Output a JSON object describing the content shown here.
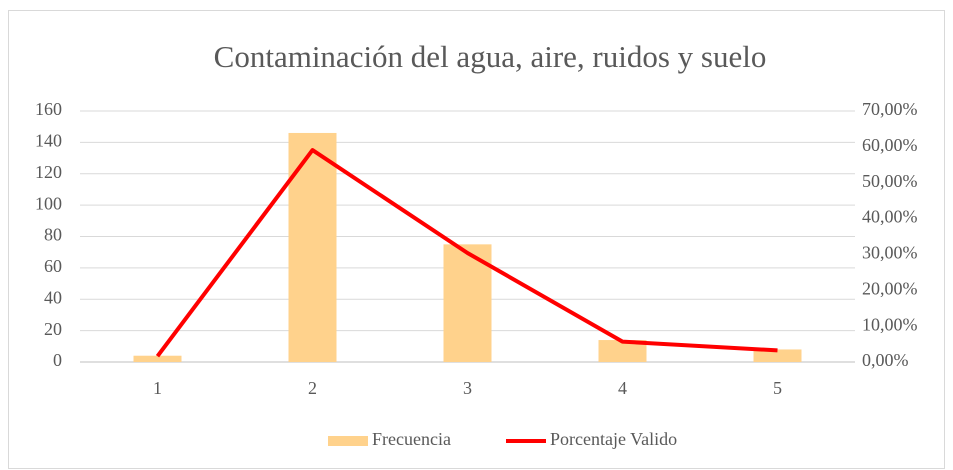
{
  "chart_data": {
    "type": "bar",
    "title": "Contaminación del agua, aire, ruidos y suelo",
    "categories": [
      "1",
      "2",
      "3",
      "4",
      "5"
    ],
    "series": [
      {
        "name": "Frecuencia",
        "type": "bar",
        "color": "#ffd28c",
        "values": [
          4,
          146,
          75,
          14,
          8
        ]
      },
      {
        "name": "Porcentaje Valido",
        "type": "line",
        "axis": "y2",
        "color": "#ff0000",
        "values": [
          1.62,
          59.1,
          30.4,
          5.67,
          3.24
        ]
      }
    ],
    "ylim": [
      0,
      160
    ],
    "yticks": [
      0,
      20,
      40,
      60,
      80,
      100,
      120,
      140,
      160
    ],
    "y2lim": [
      0,
      70
    ],
    "y2ticks": [
      {
        "value": 0,
        "label": "0,00%"
      },
      {
        "value": 10,
        "label": "10,00%"
      },
      {
        "value": 20,
        "label": "20,00%"
      },
      {
        "value": 30,
        "label": "30,00%"
      },
      {
        "value": 40,
        "label": "40,00%"
      },
      {
        "value": 50,
        "label": "50,00%"
      },
      {
        "value": 60,
        "label": "60,00%"
      },
      {
        "value": 70,
        "label": "70,00%"
      }
    ],
    "grid": true,
    "legend": "bottom"
  }
}
